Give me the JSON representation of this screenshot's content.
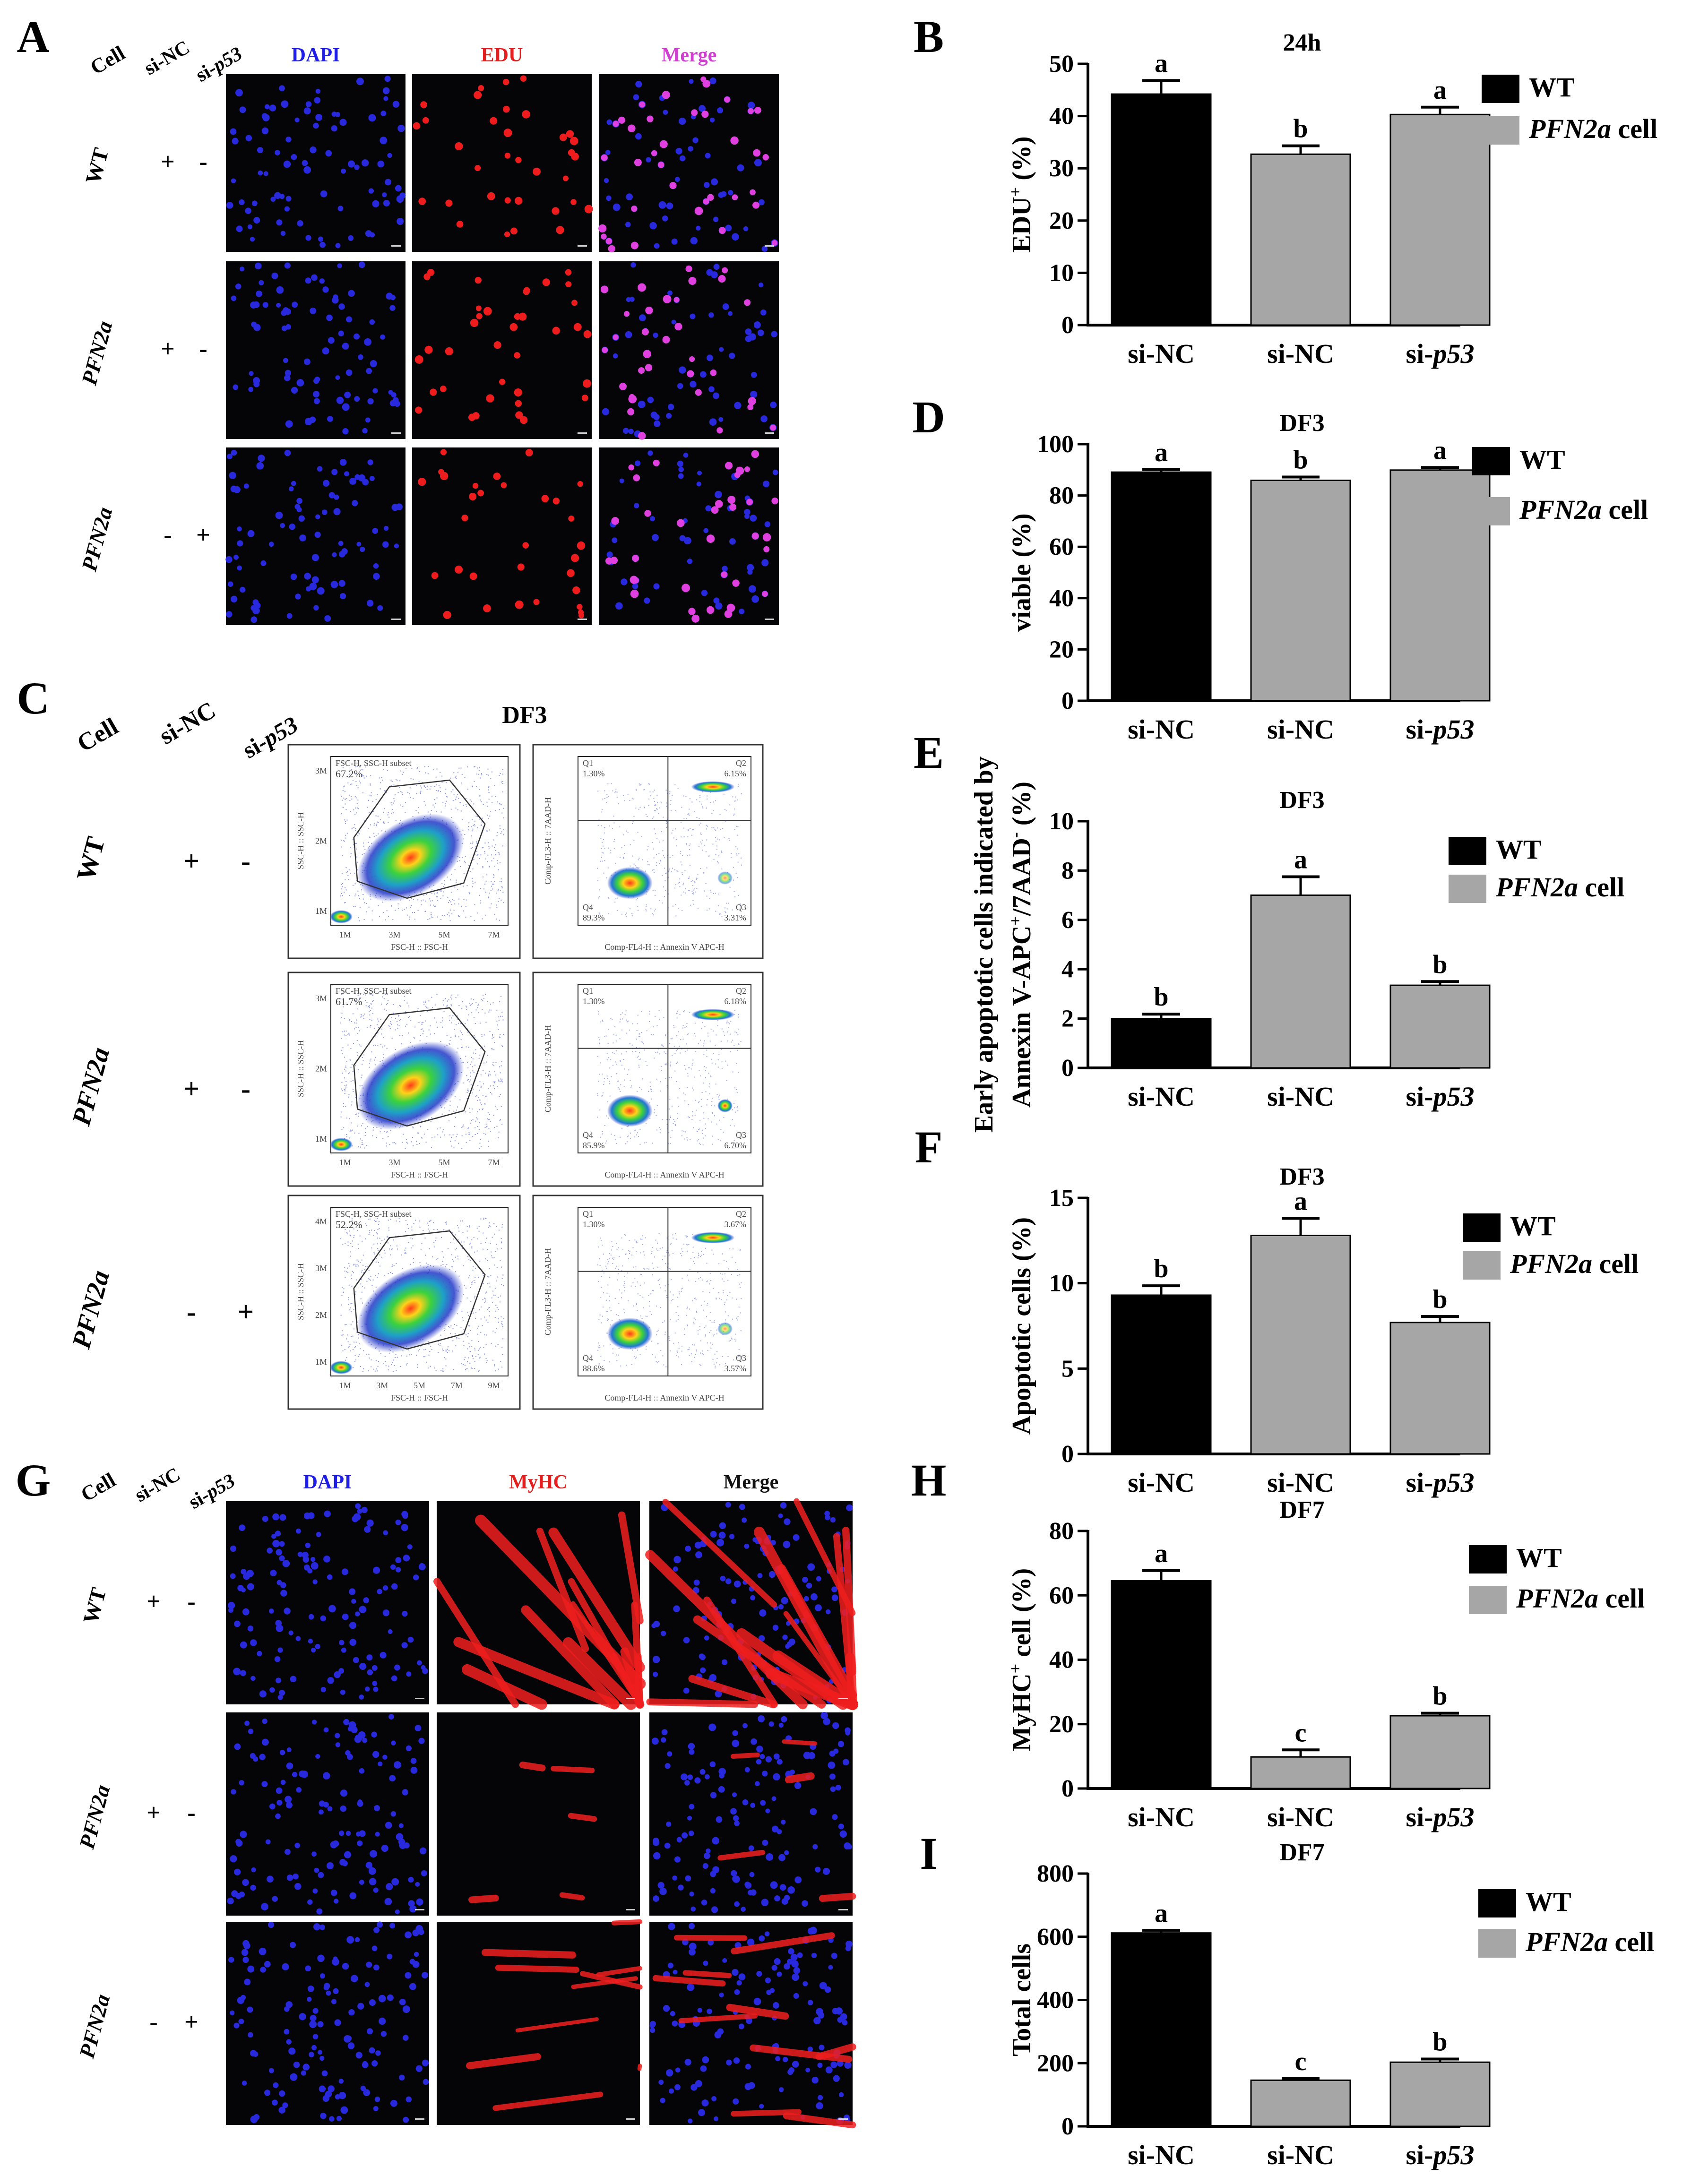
{
  "panels": {
    "A": {
      "letter": "A",
      "col_headers": {
        "cell": "Cell",
        "sinc": "si-NC",
        "sip53_pre": "si-",
        "sip53_gene": "p53"
      },
      "channels": [
        {
          "name": "DAPI",
          "color": "#1e1ee6"
        },
        {
          "name": "EDU",
          "color": "#e61e1e"
        },
        {
          "name": "Merge",
          "color": "#d040d0"
        }
      ],
      "rows": [
        {
          "cell": "WT",
          "italic": false,
          "sinc": "+",
          "sip53": "-"
        },
        {
          "cell": "PFN2a",
          "italic": true,
          "sinc": "+",
          "sip53": "-"
        },
        {
          "cell": "PFN2a",
          "italic": true,
          "sinc": "-",
          "sip53": "+"
        }
      ]
    },
    "C": {
      "letter": "C",
      "title": "DF3",
      "col_headers": {
        "cell": "Cell",
        "sinc": "si-NC",
        "sip53_pre": "si-",
        "sip53_gene": "p53"
      },
      "rows": [
        {
          "cell": "WT",
          "italic": false,
          "sinc": "+",
          "sip53": "-",
          "gate_label": "FSC-H, SSC-H subset",
          "gate_pct": "67.2%",
          "q1": "1.30%",
          "q2": "6.15%",
          "q3": "3.31%",
          "q4": "89.3%",
          "fsc_ticks": [
            "1M",
            "3M",
            "5M",
            "7M"
          ],
          "ssc_ticks": [
            "3M",
            "2M",
            "1M"
          ]
        },
        {
          "cell": "PFN2a",
          "italic": true,
          "sinc": "+",
          "sip53": "-",
          "gate_label": "FSC-H, SSC-H subset",
          "gate_pct": "61.7%",
          "q1": "1.30%",
          "q2": "6.18%",
          "q3": "6.70%",
          "q4": "85.9%",
          "fsc_ticks": [
            "1M",
            "3M",
            "5M",
            "7M"
          ],
          "ssc_ticks": [
            "3M",
            "2M",
            "1M"
          ]
        },
        {
          "cell": "PFN2a",
          "italic": true,
          "sinc": "-",
          "sip53": "+",
          "gate_label": "FSC-H, SSC-H subset",
          "gate_pct": "52.2%",
          "q1": "1.30%",
          "q2": "3.67%",
          "q3": "3.57%",
          "q4": "88.6%",
          "fsc_ticks": [
            "1M",
            "3M",
            "5M",
            "7M",
            "9M"
          ],
          "ssc_ticks": [
            "4M",
            "3M",
            "2M",
            "1M"
          ]
        }
      ],
      "scatter_x_label": "FSC-H :: FSC-H",
      "scatter_y_label": "SSC-H :: SSC-H",
      "apop_x_label": "Comp-FL4-H :: Annexin V APC-H",
      "apop_y_label": "Comp-FL3-H :: 7AAD-H",
      "quad_names": {
        "q1": "Q1",
        "q2": "Q2",
        "q3": "Q3",
        "q4": "Q4"
      }
    },
    "G": {
      "letter": "G",
      "col_headers": {
        "cell": "Cell",
        "sinc": "si-NC",
        "sip53_pre": "si-",
        "sip53_gene": "p53"
      },
      "channels": [
        {
          "name": "DAPI",
          "color": "#1e1ee6"
        },
        {
          "name": "MyHC",
          "color": "#e61e1e"
        },
        {
          "name": "Merge",
          "color": "#111111"
        }
      ],
      "rows": [
        {
          "cell": "WT",
          "italic": false,
          "sinc": "+",
          "sip53": "-"
        },
        {
          "cell": "PFN2a",
          "italic": true,
          "sinc": "+",
          "sip53": "-"
        },
        {
          "cell": "PFN2a",
          "italic": true,
          "sinc": "-",
          "sip53": "+"
        }
      ]
    }
  },
  "legend": {
    "wt": "WT",
    "pfn_gene": "PFN2a",
    "pfn_suffix": " cell",
    "wt_color": "#000000",
    "pfn_color": "#a6a6a6"
  },
  "chart_data": [
    {
      "id": "B",
      "type": "bar",
      "title": "24h",
      "ylabel_parts": [
        {
          "t": "EDU",
          "s": "n"
        },
        {
          "t": "+",
          "s": "sup"
        },
        {
          "t": " (%)",
          "s": "n"
        }
      ],
      "ylim": [
        0,
        50
      ],
      "yticks": [
        0,
        10,
        20,
        30,
        40,
        50
      ],
      "categories": [
        "si-NC",
        "si-NC",
        "si-p53"
      ],
      "values": [
        44.2,
        32.7,
        40.3
      ],
      "errors": [
        2.6,
        1.6,
        1.4
      ],
      "letters": [
        "a",
        "b",
        "a"
      ],
      "groups": [
        "WT",
        "PFN2a",
        "PFN2a"
      ]
    },
    {
      "id": "D",
      "type": "bar",
      "title": "DF3",
      "ylabel_parts": [
        {
          "t": "viable (%)",
          "s": "n"
        }
      ],
      "ylim": [
        0,
        100
      ],
      "yticks": [
        0,
        20,
        40,
        60,
        80,
        100
      ],
      "categories": [
        "si-NC",
        "si-NC",
        "si-p53"
      ],
      "values": [
        89.1,
        85.9,
        89.9
      ],
      "errors": [
        1.0,
        1.3,
        1.0
      ],
      "letters": [
        "a",
        "b",
        "a"
      ],
      "groups": [
        "WT",
        "PFN2a",
        "PFN2a"
      ]
    },
    {
      "id": "E",
      "type": "bar",
      "title": "DF3",
      "ylabel_line1": "Early apoptotic cells indicated by",
      "ylabel_parts": [
        {
          "t": "Annexin V-APC",
          "s": "n"
        },
        {
          "t": "+",
          "s": "sup"
        },
        {
          "t": "/7AAD",
          "s": "n"
        },
        {
          "t": "-",
          "s": "sup"
        },
        {
          "t": " (%)",
          "s": "n"
        }
      ],
      "ylim": [
        0,
        10
      ],
      "yticks": [
        0,
        2,
        4,
        6,
        8,
        10
      ],
      "categories": [
        "si-NC",
        "si-NC",
        "si-p53"
      ],
      "values": [
        2.0,
        7.0,
        3.35
      ],
      "errors": [
        0.18,
        0.75,
        0.15
      ],
      "letters": [
        "b",
        "a",
        "b"
      ],
      "groups": [
        "WT",
        "PFN2a",
        "PFN2a"
      ]
    },
    {
      "id": "F",
      "type": "bar",
      "title": "DF3",
      "ylabel_parts": [
        {
          "t": "Apoptotic cells (%)",
          "s": "n"
        }
      ],
      "ylim": [
        0,
        15
      ],
      "yticks": [
        0,
        5,
        10,
        15
      ],
      "categories": [
        "si-NC",
        "si-NC",
        "si-p53"
      ],
      "values": [
        9.3,
        12.8,
        7.7
      ],
      "errors": [
        0.55,
        1.0,
        0.35
      ],
      "letters": [
        "b",
        "a",
        "b"
      ],
      "groups": [
        "WT",
        "PFN2a",
        "PFN2a"
      ]
    },
    {
      "id": "H",
      "type": "bar",
      "title": "DF7",
      "ylabel_parts": [
        {
          "t": "MyHC",
          "s": "n"
        },
        {
          "t": "+",
          "s": "sup"
        },
        {
          "t": " cell (%)",
          "s": "n"
        }
      ],
      "ylim": [
        0,
        80
      ],
      "yticks": [
        0,
        20,
        40,
        60,
        80
      ],
      "categories": [
        "si-NC",
        "si-NC",
        "si-p53"
      ],
      "values": [
        64.5,
        9.8,
        22.6
      ],
      "errors": [
        3.2,
        2.2,
        0.8
      ],
      "letters": [
        "a",
        "c",
        "b"
      ],
      "groups": [
        "WT",
        "PFN2a",
        "PFN2a"
      ]
    },
    {
      "id": "I",
      "type": "bar",
      "title": "DF7",
      "ylabel_parts": [
        {
          "t": "Total cells",
          "s": "n"
        }
      ],
      "ylim": [
        0,
        800
      ],
      "yticks": [
        0,
        200,
        400,
        600,
        800
      ],
      "categories": [
        "si-NC",
        "si-NC",
        "si-p53"
      ],
      "values": [
        612,
        146,
        203
      ],
      "errors": [
        8,
        5,
        10
      ],
      "letters": [
        "a",
        "c",
        "b"
      ],
      "groups": [
        "WT",
        "PFN2a",
        "PFN2a"
      ]
    }
  ]
}
